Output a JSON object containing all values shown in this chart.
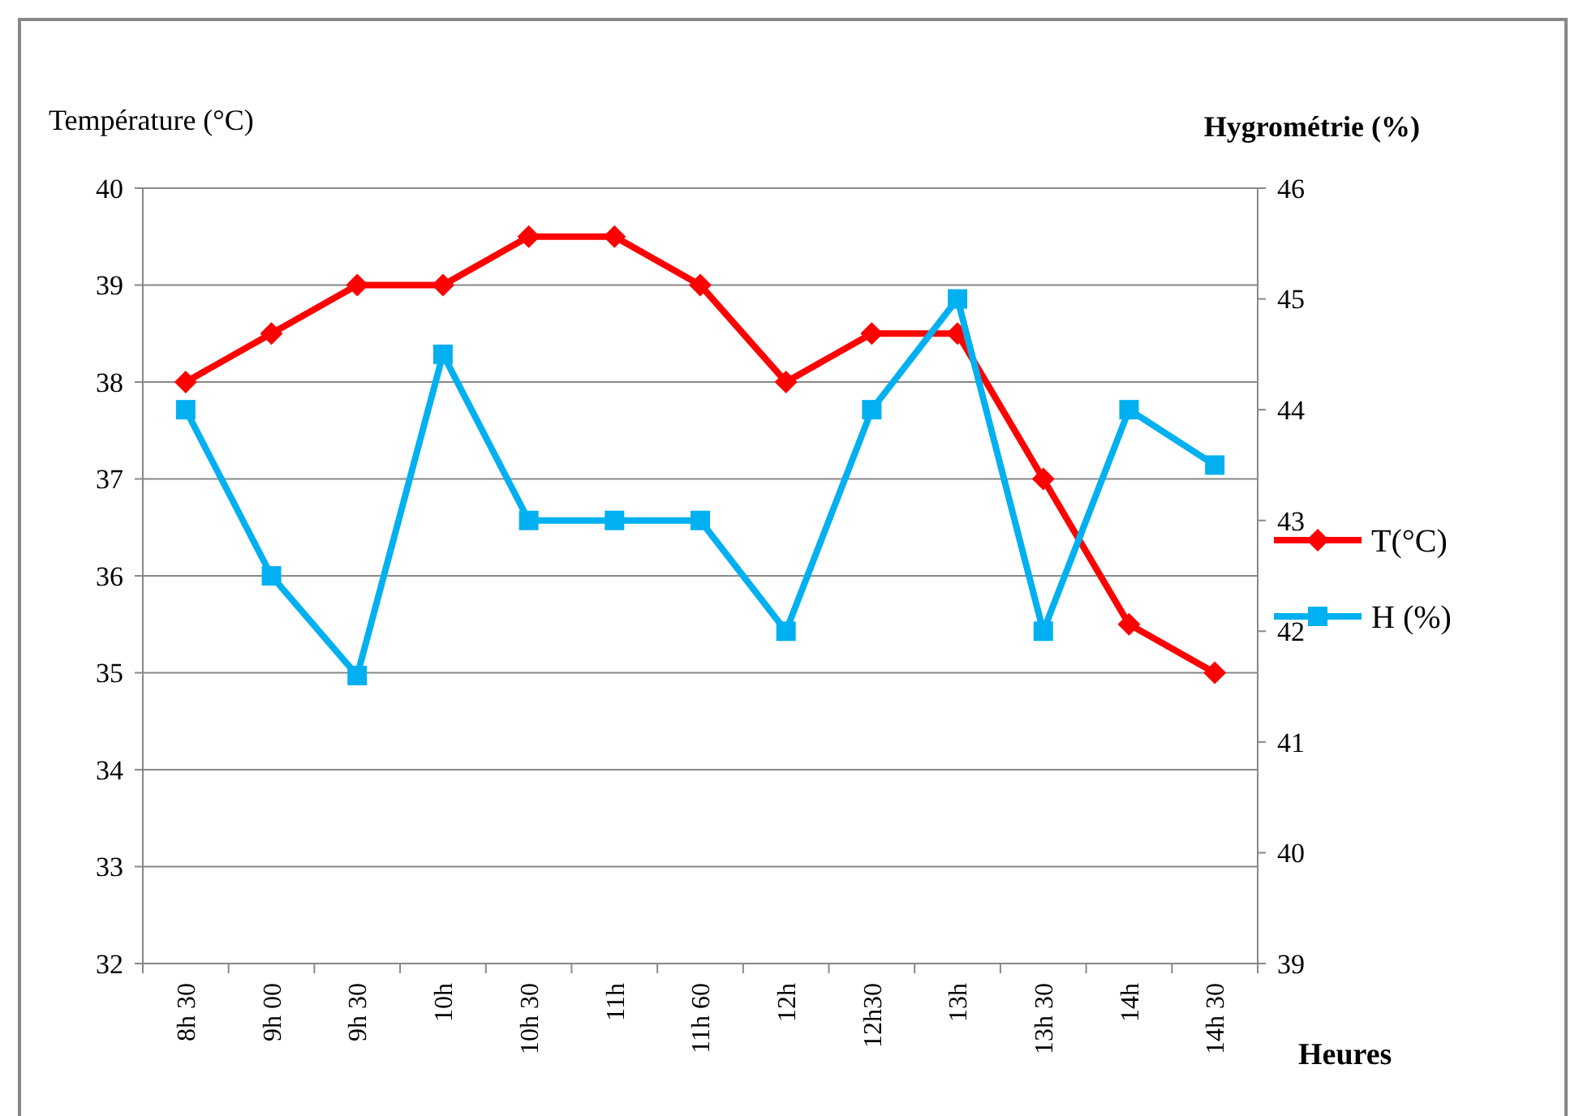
{
  "chart_data": {
    "type": "line",
    "xlabel": "Heures",
    "ylabel": "Température (°C)",
    "y2label": "Hygrométrie (%)",
    "categories": [
      "8h 30",
      "9h 00",
      "9h 30",
      "10h",
      "10h 30",
      "11h",
      "11h 60",
      "12h",
      "12h30",
      "13h",
      "13h 30",
      "14h",
      "14h 30"
    ],
    "series": [
      {
        "name": "T(°C)",
        "color": "#ff0000",
        "marker": "diamond",
        "values": [
          38,
          38.5,
          39,
          39,
          39.5,
          39.5,
          39,
          38,
          38.5,
          38.5,
          37,
          35.5,
          35
        ]
      },
      {
        "name": "H (%)",
        "color": "#00b0f0",
        "marker": "square",
        "axis": "y2",
        "values": [
          44,
          42.5,
          41.6,
          44.5,
          43,
          43,
          43,
          42,
          44,
          45,
          42,
          44,
          43.5
        ]
      }
    ],
    "ylim": [
      32,
      40
    ],
    "yticks": [
      32,
      33,
      34,
      35,
      36,
      37,
      38,
      39,
      40
    ],
    "y2lim": [
      39,
      46
    ],
    "y2ticks": [
      39,
      40,
      41,
      42,
      43,
      44,
      45,
      46
    ],
    "grid": "y",
    "legend": "right",
    "line_style": "solid"
  }
}
